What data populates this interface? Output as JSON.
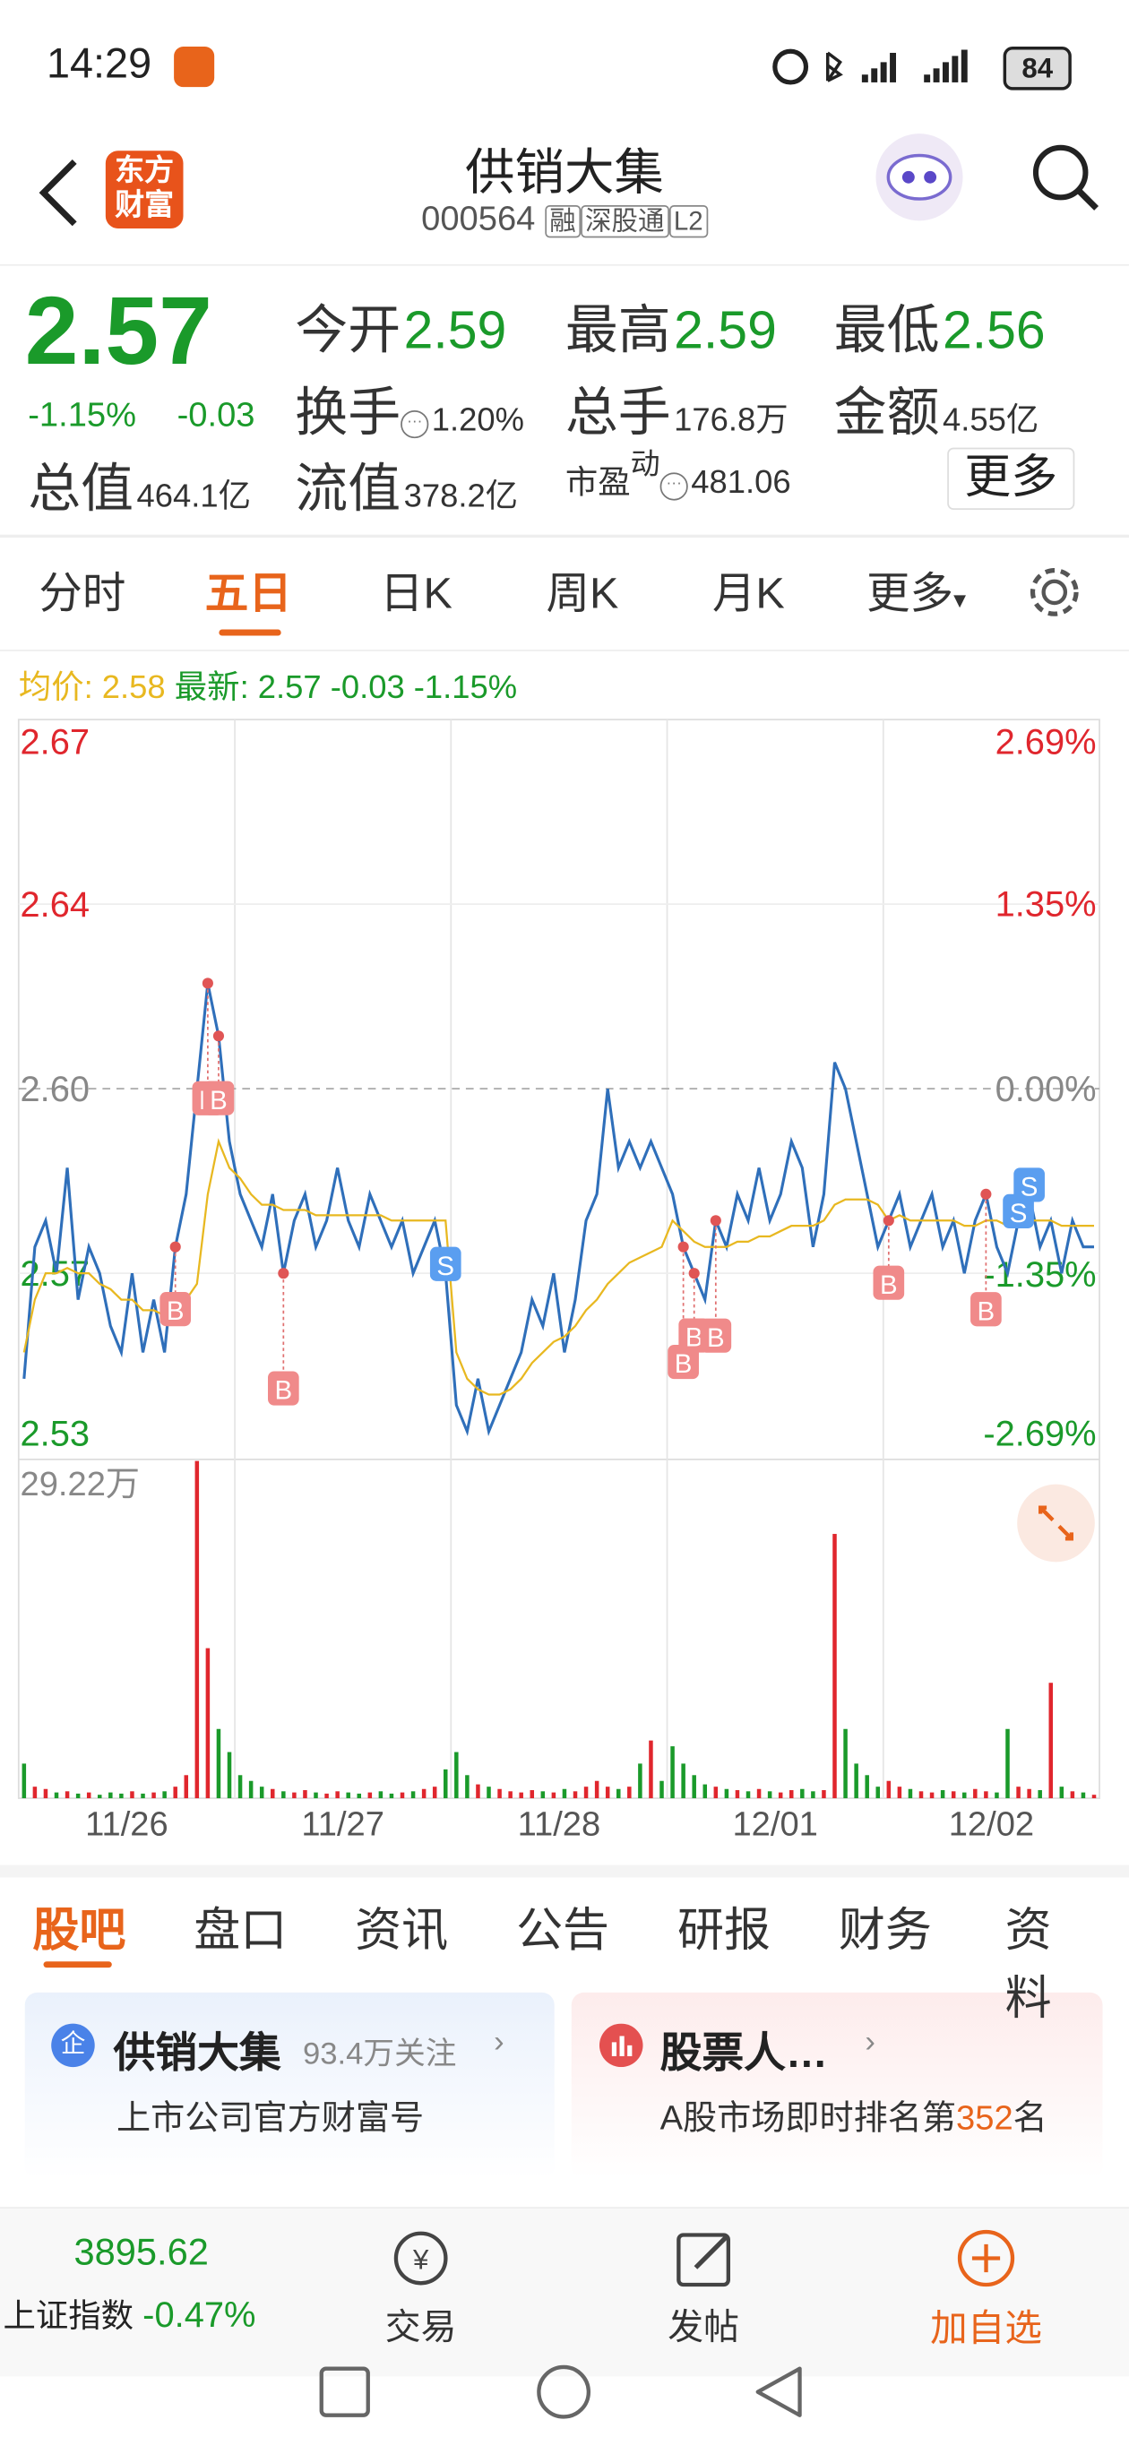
{
  "status_bar": {
    "time": "14:29",
    "battery": "84"
  },
  "header": {
    "logo": "东方财富",
    "title": "供销大集",
    "code": "000564",
    "tags": [
      "融",
      "深股通",
      "L2"
    ]
  },
  "quote": {
    "price": "2.57",
    "change_pct": "-1.15%",
    "change": "-0.03",
    "fields": [
      {
        "label": "今开",
        "value": "2.59"
      },
      {
        "label": "最高",
        "value": "2.59"
      },
      {
        "label": "最低",
        "value": "2.56"
      },
      {
        "label": "换手",
        "value": "1.20%"
      },
      {
        "label": "总手",
        "value": "176.8万"
      },
      {
        "label": "金额",
        "value": "4.55亿"
      },
      {
        "label": "总值",
        "value": "464.1亿"
      },
      {
        "label": "流值",
        "value": "378.2亿"
      },
      {
        "label": "市盈",
        "label_sup": "动",
        "value": "481.06"
      }
    ],
    "more": "更多"
  },
  "chart_tabs": {
    "items": [
      "分时",
      "五日",
      "日K",
      "周K",
      "月K",
      "更多"
    ],
    "active": 1
  },
  "chart_legend": {
    "average": "均价: 2.58",
    "latest": "最新: 2.57 -0.03 -1.15%"
  },
  "chart_data": [
    {
      "type": "line",
      "xlim": [
        0,
        100
      ],
      "ylim": [
        2.53,
        2.67
      ],
      "yticks": [
        2.53,
        {
          "value": 2.565,
          "label": "2.57"
        },
        {
          "value": 2.6,
          "label": "2.60"
        },
        {
          "value": 2.635,
          "label": "2.64"
        },
        2.67
      ],
      "y2lim": [
        -2.69,
        2.69
      ],
      "y2ticks": [
        {
          "value": -2.69,
          "label": "-2.69%"
        },
        {
          "value": -1.35,
          "label": "-1.35%"
        },
        {
          "value": 0,
          "label": "0.00%"
        },
        {
          "value": 1.35,
          "label": "1.35%"
        },
        {
          "value": 2.69,
          "label": "2.69%"
        }
      ],
      "series": [
        {
          "name": "价格",
          "color": "#2f6fba",
          "values": [
            2.545,
            2.57,
            2.575,
            2.565,
            2.585,
            2.56,
            2.57,
            2.565,
            2.555,
            2.55,
            2.565,
            2.55,
            2.56,
            2.55,
            2.57,
            2.58,
            2.6,
            2.62,
            2.61,
            2.59,
            2.58,
            2.575,
            2.57,
            2.58,
            2.565,
            2.575,
            2.58,
            2.57,
            2.575,
            2.585,
            2.575,
            2.57,
            2.58,
            2.575,
            2.57,
            2.575,
            2.565,
            2.57,
            2.575,
            2.565,
            2.54,
            2.535,
            2.545,
            2.535,
            2.54,
            2.545,
            2.55,
            2.56,
            2.555,
            2.565,
            2.55,
            2.56,
            2.575,
            2.58,
            2.6,
            2.585,
            2.59,
            2.585,
            2.59,
            2.585,
            2.58,
            2.57,
            2.565,
            2.56,
            2.575,
            2.57,
            2.58,
            2.575,
            2.585,
            2.575,
            2.58,
            2.59,
            2.585,
            2.57,
            2.58,
            2.605,
            2.6,
            2.59,
            2.58,
            2.57,
            2.575,
            2.58,
            2.57,
            2.575,
            2.58,
            2.57,
            2.575,
            2.565,
            2.575,
            2.58,
            2.57,
            2.565,
            2.575,
            2.58,
            2.57,
            2.575,
            2.565,
            2.575,
            2.57,
            2.57
          ]
        },
        {
          "name": "均价",
          "color": "#e8b820",
          "values": [
            2.55,
            2.56,
            2.565,
            2.565,
            2.566,
            2.565,
            2.565,
            2.563,
            2.562,
            2.56,
            2.56,
            2.558,
            2.558,
            2.557,
            2.558,
            2.56,
            2.563,
            2.58,
            2.59,
            2.585,
            2.583,
            2.58,
            2.578,
            2.578,
            2.577,
            2.577,
            2.577,
            2.576,
            2.576,
            2.576,
            2.576,
            2.576,
            2.576,
            2.576,
            2.575,
            2.575,
            2.575,
            2.575,
            2.575,
            2.575,
            2.55,
            2.545,
            2.543,
            2.542,
            2.542,
            2.543,
            2.545,
            2.548,
            2.55,
            2.552,
            2.553,
            2.555,
            2.558,
            2.56,
            2.563,
            2.565,
            2.567,
            2.568,
            2.569,
            2.57,
            2.575,
            2.573,
            2.571,
            2.57,
            2.57,
            2.57,
            2.571,
            2.571,
            2.572,
            2.572,
            2.573,
            2.574,
            2.574,
            2.574,
            2.575,
            2.578,
            2.579,
            2.579,
            2.579,
            2.578,
            2.575,
            2.576,
            2.575,
            2.575,
            2.575,
            2.575,
            2.575,
            2.574,
            2.574,
            2.575,
            2.575,
            2.574,
            2.574,
            2.575,
            2.575,
            2.575,
            2.574,
            2.574,
            2.574,
            2.574
          ]
        }
      ],
      "markers": [
        {
          "label": "B",
          "index": 14
        },
        {
          "label": "B",
          "index": 17
        },
        {
          "label": "B",
          "index": 18
        },
        {
          "label": "B",
          "index": 24
        },
        {
          "label": "S",
          "index": 39
        },
        {
          "label": "B",
          "index": 61
        },
        {
          "label": "B",
          "index": 62
        },
        {
          "label": "B",
          "index": 64
        },
        {
          "label": "B",
          "index": 80
        },
        {
          "label": "B",
          "index": 89
        },
        {
          "label": "S",
          "index": 92
        },
        {
          "label": "S",
          "index": 93
        }
      ]
    },
    {
      "type": "bar",
      "xlim": [
        0,
        100
      ],
      "xticks": [
        {
          "value": 10,
          "label": "11/26"
        },
        {
          "value": 30,
          "label": "11/27"
        },
        {
          "value": 50,
          "label": "11/28"
        },
        {
          "value": 70,
          "label": "12/01"
        },
        {
          "value": 90,
          "label": "12/02"
        }
      ],
      "ylim": [
        0,
        29.22
      ],
      "yticks": [
        {
          "value": 29.22,
          "label": "29.22万"
        }
      ],
      "up_color": "#e0262d",
      "down_color": "#1a9a2a",
      "values": [
        3,
        1,
        0.8,
        0.5,
        0.6,
        0.4,
        0.5,
        0.3,
        0.5,
        0.4,
        0.6,
        0.4,
        0.5,
        0.6,
        1,
        2,
        29.22,
        13,
        6,
        4,
        2,
        1.5,
        1,
        0.8,
        0.6,
        0.5,
        0.7,
        0.5,
        0.4,
        0.6,
        0.5,
        0.4,
        0.5,
        0.6,
        0.4,
        0.5,
        0.6,
        0.8,
        1,
        2.5,
        4,
        2,
        1.2,
        1,
        0.8,
        0.6,
        0.5,
        0.7,
        0.6,
        0.5,
        0.8,
        0.6,
        1,
        1.5,
        1,
        0.8,
        1,
        3,
        5,
        1.5,
        4.5,
        3,
        2,
        1.2,
        1,
        0.8,
        0.7,
        0.6,
        0.8,
        0.6,
        0.5,
        0.7,
        0.8,
        0.6,
        0.7,
        22.9,
        6,
        3,
        2,
        1,
        1.5,
        1,
        0.8,
        0.6,
        0.5,
        0.7,
        0.6,
        0.5,
        0.8,
        0.6,
        0.5,
        6,
        1,
        0.8,
        0.7,
        10,
        1,
        0.6,
        0.5,
        0.3
      ]
    }
  ],
  "info_tabs": {
    "items": [
      "股吧",
      "盘口",
      "资讯",
      "公告",
      "研报",
      "财务",
      "资料"
    ],
    "active": 0
  },
  "cards": [
    {
      "icon": "企",
      "title": "供销大集",
      "meta": "93.4万关注",
      "subtitle": "上市公司官方财富号"
    },
    {
      "title": "股票人…",
      "subtitle_prefix": "A股市场即时排名第",
      "rank": "352",
      "subtitle_suffix": "名"
    }
  ],
  "bottom_bar": {
    "index_value": "3895.62",
    "index_name": "上证指数",
    "index_change": "-0.47%",
    "trade": "交易",
    "post": "发帖",
    "add": "加自选"
  }
}
